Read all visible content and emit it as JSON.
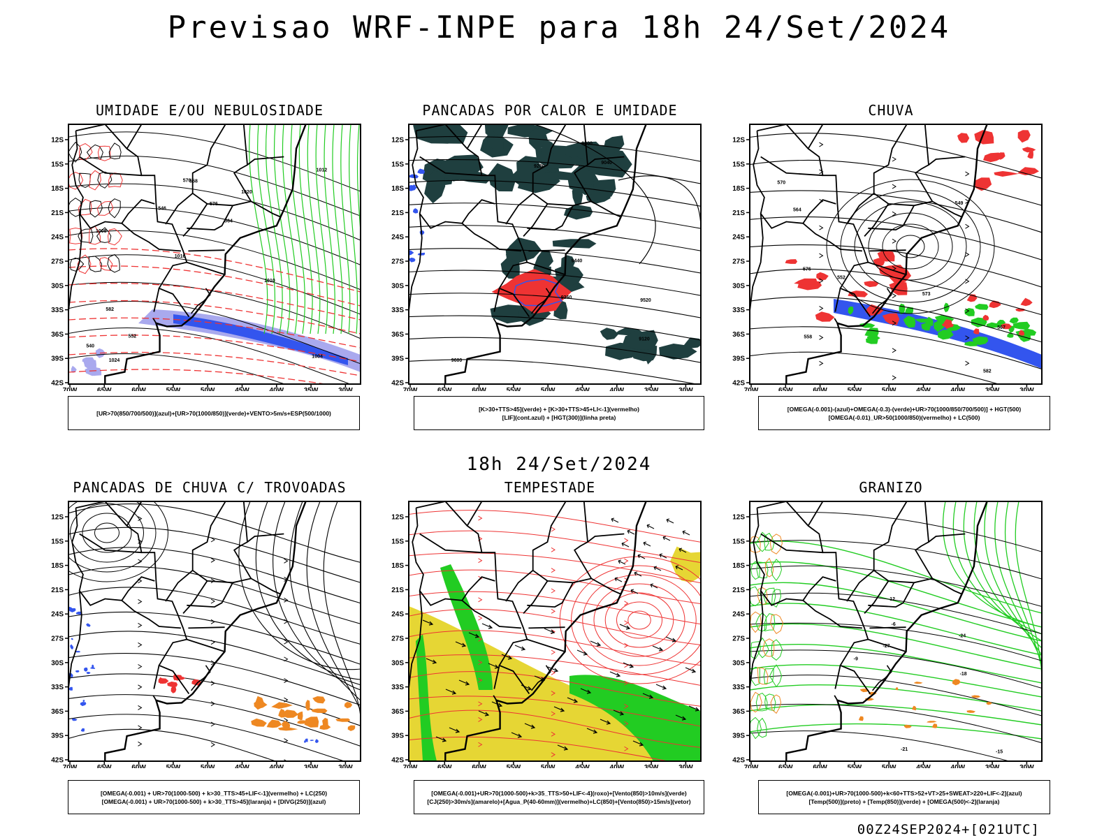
{
  "header": {
    "title": "Previsao WRF-INPE  para 18h 24/Set/2024",
    "subtitle": "18h 24/Set/2024",
    "footer": "00Z24SEP2024+[021UTC]"
  },
  "axes": {
    "lat_labels": [
      "12S",
      "15S",
      "18S",
      "21S",
      "24S",
      "27S",
      "30S",
      "33S",
      "36S",
      "39S",
      "42S"
    ],
    "lon_labels": [
      "70W",
      "65W",
      "60W",
      "55W",
      "50W",
      "45W",
      "40W",
      "35W",
      "30W"
    ]
  },
  "colors": {
    "blue": "#3355ee",
    "lightblue": "#a9a9ee",
    "green": "#22cc22",
    "red": "#ee3333",
    "orange": "#ee8822",
    "yellow": "#e6d634",
    "darkteal": "#1f3f3f"
  },
  "panels": [
    {
      "id": "umidade",
      "title": "UMIDADE E/OU NEBULOSIDADE",
      "legend": [
        "[UR>70(850/700/500)](azul)+[UR>70(1000/850)](verde)+VENTO>5m/s+ESP(500/1000)"
      ],
      "labels": [
        "1004",
        "1008",
        "1012",
        "1016",
        "1020",
        "1024",
        "570",
        "576",
        "582",
        "546",
        "540",
        "552",
        "558",
        "564",
        "1010"
      ]
    },
    {
      "id": "pancadas-calor",
      "title": "PANCADAS POR CALOR E UMIDADE",
      "legend": [
        "[K>30+TTS>45](verde) + [K>30+TTS>45+LI<-1](vermelho)",
        "[LIF](cont.azul) + [HGT(300)](linha preta)"
      ],
      "labels": [
        "9600",
        "9520",
        "9440",
        "9360",
        "9280",
        "9200",
        "9120",
        "9040"
      ]
    },
    {
      "id": "chuva",
      "title": "CHUVA",
      "legend": [
        "[OMEGA(-0.001)-(azul)+OMEGA(-0.3)-(verde)+UR>70(1000/850/700/500)] + HGT(500)",
        "[OMEGA(-0.01)_UR>50(1000/850)(vermelho) + LC(500)"
      ],
      "labels": [
        "582",
        "576",
        "573",
        "570",
        "567",
        "564",
        "558",
        "552",
        "549"
      ]
    },
    {
      "id": "trovoadas",
      "title": "PANCADAS DE CHUVA C/ TROVOADAS",
      "legend": [
        "[OMEGA(-0.001) + UR>70(1000-500) + k>30_TTS>45+LIF<-1](vermelho) + LC(250)",
        "[OMEGA(-0.001) + UR>70(1000-500) + k>30_TTS>45](laranja) + [DIVG(250)](azul)"
      ],
      "labels": []
    },
    {
      "id": "tempestade",
      "title": "TEMPESTADE",
      "legend": [
        "[OMEGA(-0.001)+UR>70(1000-500)+k>35_TTS>50+LIF<-4](roxo)+[Vento(850)>10m/s](verde)",
        "[CJ(250)>30m/s](amarelo)+[Agua_P(40-60mm)](vermelho)+LC(850)+[Vento(850)>15m/s](vetor)"
      ],
      "labels": []
    },
    {
      "id": "granizo",
      "title": "GRANIZO",
      "legend": [
        "[OMEGA(-0.001)+UR>70(1000-500)+k<60+TTS>52+VT>25+SWEAT>220+LIF<-2](azul)",
        "[Temp(500)](preto) + [Temp(850)](verde) + [OMEGA(500)<-2](laranja)"
      ],
      "labels": [
        "-12",
        "-15",
        "-18",
        "-21",
        "-24",
        "-27",
        "-9",
        "-6"
      ]
    }
  ]
}
